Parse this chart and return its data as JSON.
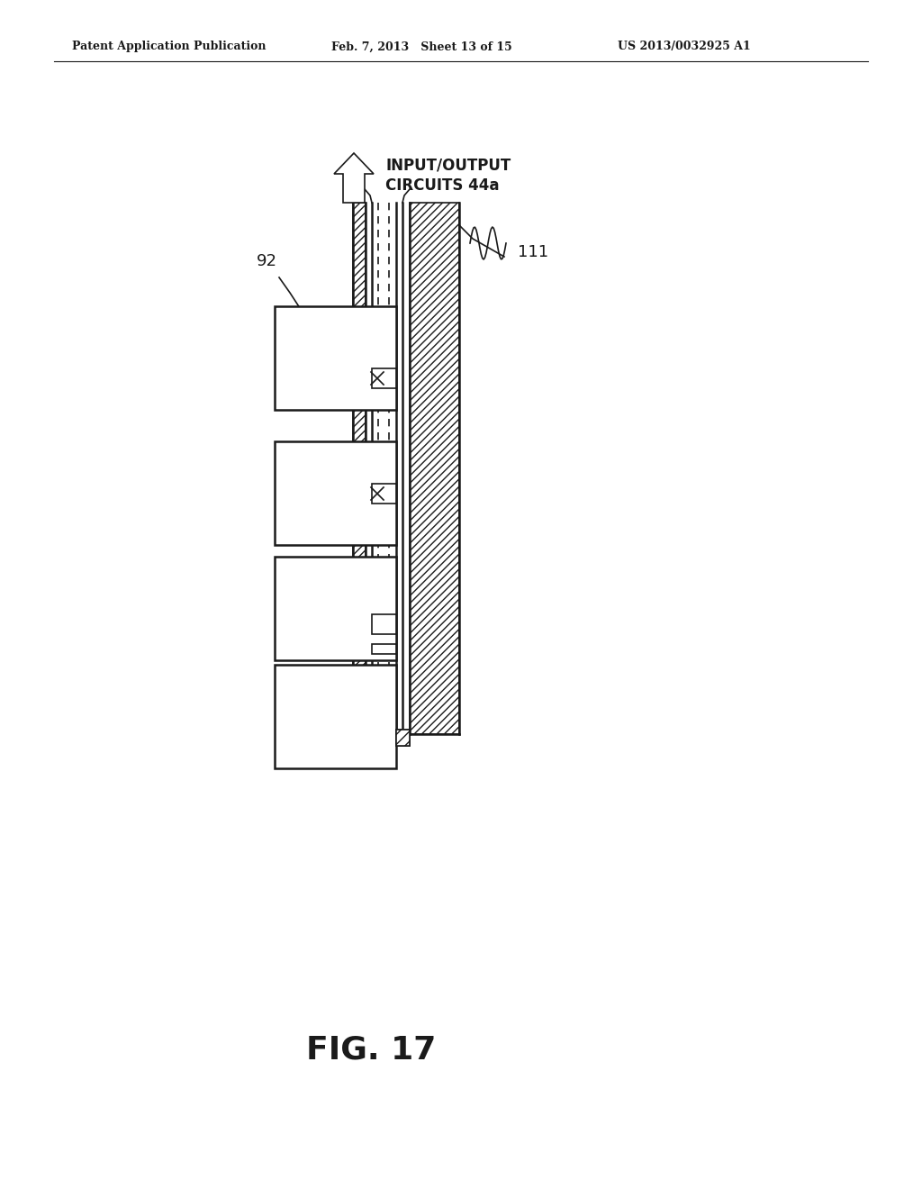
{
  "background_color": "#ffffff",
  "header_left": "Patent Application Publication",
  "header_mid": "Feb. 7, 2013   Sheet 13 of 15",
  "header_right": "US 2013/0032925 A1",
  "fig_label": "FIG. 17",
  "label_92": "92",
  "label_111": "111",
  "label_io": "INPUT/OUTPUT\nCIRCUITS 44a"
}
